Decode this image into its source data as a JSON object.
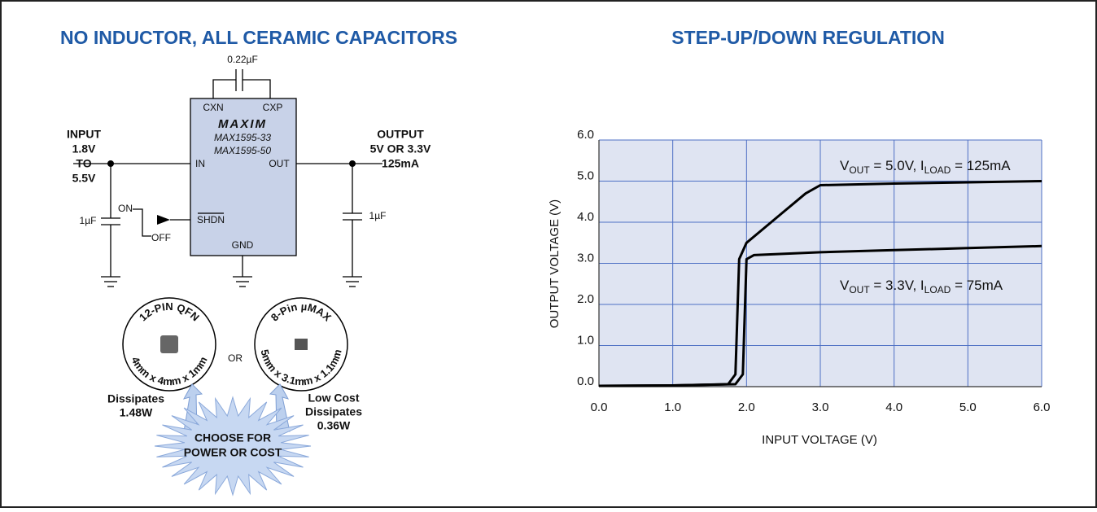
{
  "left": {
    "title": "NO INDUCTOR, ALL CERAMIC CAPACITORS",
    "cap_top": "0.22µF",
    "chip": {
      "pins": [
        "CXN",
        "CXP",
        "IN",
        "OUT",
        "SHDN",
        "GND"
      ],
      "logo": "MAXIM",
      "parts": [
        "MAX1595-33",
        "MAX1595-50"
      ]
    },
    "input": [
      "INPUT",
      "1.8V",
      "TO",
      "5.5V"
    ],
    "output": [
      "OUTPUT",
      "5V OR 3.3V",
      "125mA"
    ],
    "cap_in": "1µF",
    "cap_out": "1µF",
    "switch_on": "ON",
    "switch_off": "OFF",
    "packages": [
      {
        "name": "12-PIN QFN",
        "size": "4mm x 4mm x 1mm",
        "note": [
          "Dissipates",
          "1.48W"
        ]
      },
      {
        "name": "8-Pin µMAX",
        "size": "5mm x 3.1mm x 1.1mm",
        "note": [
          "Low Cost",
          "Dissipates",
          "0.36W"
        ]
      }
    ],
    "or": "OR",
    "burst": [
      "CHOOSE FOR",
      "POWER OR COST"
    ]
  },
  "chart_data": {
    "type": "line",
    "title": "STEP-UP/DOWN REGULATION",
    "x_label": "INPUT VOLTAGE (V)",
    "y_label": "OUTPUT VOLTAGE (V)",
    "xlim": [
      0,
      6
    ],
    "ylim": [
      0,
      6
    ],
    "xticks": [
      {
        "value": 0,
        "label": "0.0"
      },
      {
        "value": 1,
        "label": "1.0"
      },
      {
        "value": 2,
        "label": "2.0"
      },
      {
        "value": 3,
        "label": "3.0"
      },
      {
        "value": 4,
        "label": "4.0"
      },
      {
        "value": 5,
        "label": "5.0"
      },
      {
        "value": 6,
        "label": "6.0"
      }
    ],
    "yticks": [
      {
        "value": 0,
        "label": "0.0"
      },
      {
        "value": 1,
        "label": "1.0"
      },
      {
        "value": 2,
        "label": "2.0"
      },
      {
        "value": 3,
        "label": "3.0"
      },
      {
        "value": 4,
        "label": "4.0"
      },
      {
        "value": 5,
        "label": "5.0"
      },
      {
        "value": 6,
        "label": "6.0"
      }
    ],
    "grid": true,
    "plot_background": "#dfe4f2",
    "grid_color": "#4d6fc4",
    "series": [
      {
        "color": "#000000",
        "x": [
          0,
          1,
          1.75,
          1.85,
          1.9,
          2.0,
          2.2,
          2.5,
          2.8,
          3.0,
          4,
          5,
          6
        ],
        "values": [
          0.02,
          0.03,
          0.06,
          0.3,
          3.1,
          3.5,
          3.8,
          4.25,
          4.7,
          4.9,
          4.94,
          4.97,
          5.0
        ]
      },
      {
        "color": "#000000",
        "x": [
          0,
          1,
          1.85,
          1.95,
          2.0,
          2.1,
          3,
          4,
          5,
          6
        ],
        "values": [
          0.02,
          0.03,
          0.06,
          0.3,
          3.1,
          3.2,
          3.27,
          3.32,
          3.37,
          3.42
        ]
      }
    ],
    "annotations": [
      {
        "parts": [
          "V",
          "OUT",
          " = 5.0V, I",
          "LOAD",
          " = 125mA"
        ]
      },
      {
        "parts": [
          "V",
          "OUT",
          " = 3.3V, I",
          "LOAD",
          " = 75mA"
        ]
      }
    ]
  }
}
